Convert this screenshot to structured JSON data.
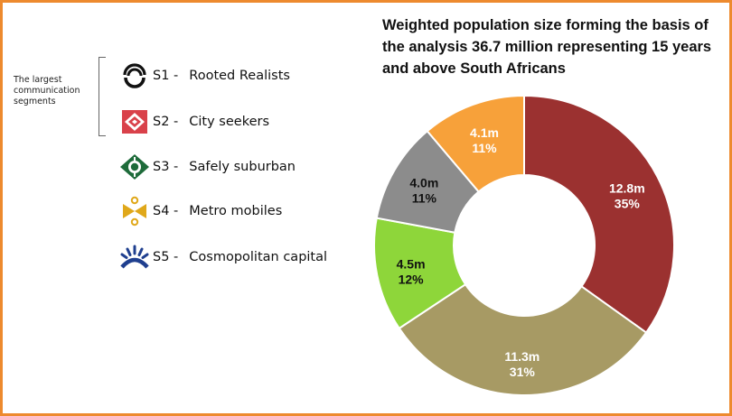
{
  "title": "Weighted population size forming the basis of the analysis 36.7 million representing 15 years and above South Africans",
  "side_note": "The largest communication segments",
  "legend": [
    {
      "code": "S1 -",
      "name": "Rooted Realists",
      "icon": "rooted-realists-icon",
      "color": "#111111"
    },
    {
      "code": "S2 -",
      "name": "City seekers",
      "icon": "city-seekers-icon",
      "color": "#d9414a"
    },
    {
      "code": "S3 -",
      "name": "Safely suburban",
      "icon": "safely-suburban-icon",
      "color": "#1e6b3a"
    },
    {
      "code": "S4 -",
      "name": "Metro mobiles",
      "icon": "metro-mobiles-icon",
      "color": "#e0a81a"
    },
    {
      "code": "S5 -",
      "name": "Cosmopolitan capital",
      "icon": "cosmopolitan-capital-icon",
      "color": "#1f3f8f"
    }
  ],
  "chart_data": {
    "type": "pie",
    "donut": true,
    "total_label": "36.7 million",
    "slices": [
      {
        "segment": "S1",
        "value": 12.8,
        "value_label": "12.8m",
        "percent_label": "35%",
        "color": "#9b3130",
        "label_color": "#ffffff"
      },
      {
        "segment": "S2",
        "value": 11.3,
        "value_label": "11.3m",
        "percent_label": "31%",
        "color": "#a79a64",
        "label_color": "#ffffff"
      },
      {
        "segment": "S3",
        "value": 4.5,
        "value_label": "4.5m",
        "percent_label": "12%",
        "color": "#8ed63a",
        "label_color": "#111111"
      },
      {
        "segment": "S4",
        "value": 4.0,
        "value_label": "4.0m",
        "percent_label": "11%",
        "color": "#8c8c8c",
        "label_color": "#111111"
      },
      {
        "segment": "S5",
        "value": 4.1,
        "value_label": "4.1m",
        "percent_label": "11%",
        "color": "#f7a13a",
        "label_color": "#ffffff"
      }
    ]
  }
}
